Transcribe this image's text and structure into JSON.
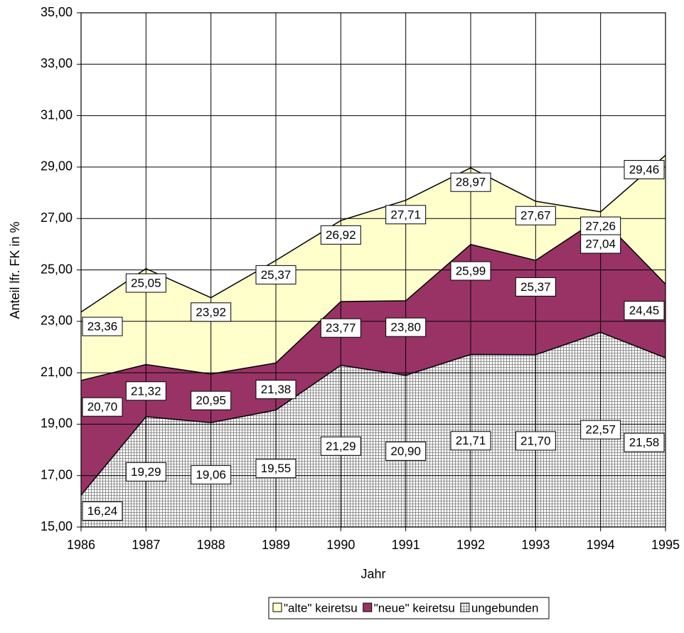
{
  "chart_data": {
    "type": "area",
    "title_y": "Anteil lfr. FK in %",
    "title_x": "Jahr",
    "categories": [
      "1986",
      "1987",
      "1988",
      "1989",
      "1990",
      "1991",
      "1992",
      "1993",
      "1994",
      "1995"
    ],
    "series": [
      {
        "name": "\"alte\" keiretsu",
        "color": "#ffffcc",
        "values": [
          23.36,
          25.05,
          23.92,
          25.37,
          26.92,
          27.71,
          28.97,
          27.67,
          27.26,
          29.46
        ],
        "value_labels": [
          "23,36",
          "25,05",
          "23,92",
          "25,37",
          "26,92",
          "27,71",
          "28,97",
          "27,67",
          "27,26",
          "29,46"
        ]
      },
      {
        "name": "\"neue\" keiretsu",
        "color": "#993366",
        "values": [
          20.7,
          21.32,
          20.95,
          21.38,
          23.77,
          23.8,
          25.99,
          25.37,
          27.04,
          24.45
        ],
        "value_labels": [
          "20,70",
          "21,32",
          "20,95",
          "21,38",
          "23,77",
          "23,80",
          "25,99",
          "25,37",
          "27,04",
          "24,45"
        ]
      },
      {
        "name": "ungebunden",
        "color": "#ffffff",
        "pattern": "grid",
        "values": [
          16.24,
          19.29,
          19.06,
          19.55,
          21.29,
          20.9,
          21.71,
          21.7,
          22.57,
          21.58
        ],
        "value_labels": [
          "16,24",
          "19,29",
          "19,06",
          "19,55",
          "21,29",
          "20,90",
          "21,71",
          "21,70",
          "22,57",
          "21,58"
        ]
      }
    ],
    "ylim": [
      15,
      35
    ],
    "yticks": [
      {
        "value": 15,
        "label": "15,00"
      },
      {
        "value": 17,
        "label": "17,00"
      },
      {
        "value": 19,
        "label": "19,00"
      },
      {
        "value": 21,
        "label": "21,00"
      },
      {
        "value": 23,
        "label": "23,00"
      },
      {
        "value": 25,
        "label": "25,00"
      },
      {
        "value": 27,
        "label": "27,00"
      },
      {
        "value": 29,
        "label": "29,00"
      },
      {
        "value": 31,
        "label": "31,00"
      },
      {
        "value": 33,
        "label": "33,00"
      },
      {
        "value": 35,
        "label": "35,00"
      }
    ],
    "grid": true,
    "legend": "bottom"
  }
}
